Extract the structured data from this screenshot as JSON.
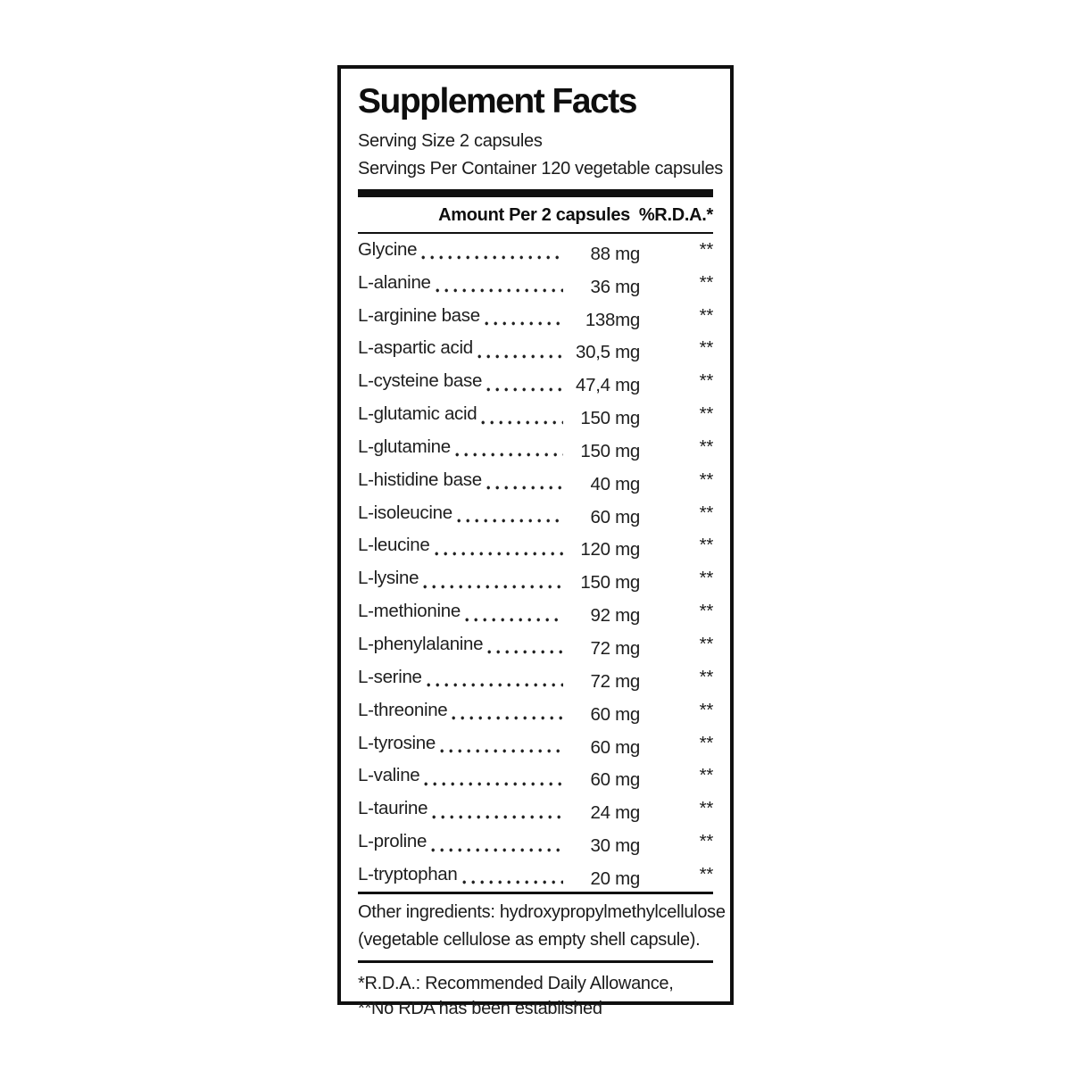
{
  "panel": {
    "title": "Supplement Facts",
    "serving_size": "Serving Size 2 capsules",
    "servings_per_container": "Servings Per Container 120 vegetable capsules",
    "header": {
      "amount_col": "Amount Per 2 capsules",
      "rda_col": "%R.D.A.*"
    },
    "rows": [
      {
        "name": "Glycine",
        "amount": "88 mg",
        "rda": "**"
      },
      {
        "name": "L-alanine",
        "amount": "36 mg",
        "rda": "**"
      },
      {
        "name": "L-arginine base",
        "amount": "138mg",
        "rda": "**"
      },
      {
        "name": "L-aspartic acid",
        "amount": "30,5 mg",
        "rda": "**"
      },
      {
        "name": "L-cysteine base",
        "amount": "47,4 mg",
        "rda": "**"
      },
      {
        "name": "L-glutamic acid",
        "amount": "150 mg",
        "rda": "**"
      },
      {
        "name": "L-glutamine",
        "amount": "150 mg",
        "rda": "**"
      },
      {
        "name": "L-histidine base",
        "amount": "40 mg",
        "rda": "**"
      },
      {
        "name": "L-isoleucine",
        "amount": "60 mg",
        "rda": "**"
      },
      {
        "name": "L-leucine",
        "amount": "120 mg",
        "rda": "**"
      },
      {
        "name": "L-lysine",
        "amount": "150 mg",
        "rda": "**"
      },
      {
        "name": "L-methionine",
        "amount": "92 mg",
        "rda": "**"
      },
      {
        "name": "L-phenylalanine",
        "amount": "72 mg",
        "rda": "**"
      },
      {
        "name": "L-serine",
        "amount": "72 mg",
        "rda": "**"
      },
      {
        "name": "L-threonine",
        "amount": "60 mg",
        "rda": "**"
      },
      {
        "name": "L-tyrosine",
        "amount": "60 mg",
        "rda": "**"
      },
      {
        "name": "L-valine",
        "amount": "60 mg",
        "rda": "**"
      },
      {
        "name": "L-taurine",
        "amount": "24 mg",
        "rda": "**"
      },
      {
        "name": "L-proline",
        "amount": "30 mg",
        "rda": "**"
      },
      {
        "name": "L-tryptophan",
        "amount": "20 mg",
        "rda": "**"
      }
    ],
    "other_ingredients": [
      "Other ingredients: hydroxypropylmethylcellulose",
      "(vegetable cellulose as empty shell capsule)."
    ],
    "footnotes": [
      "*R.D.A.: Recommended Daily Allowance,",
      "**No RDA has been established"
    ],
    "colors": {
      "ink": "#101010",
      "background": "#ffffff"
    }
  }
}
